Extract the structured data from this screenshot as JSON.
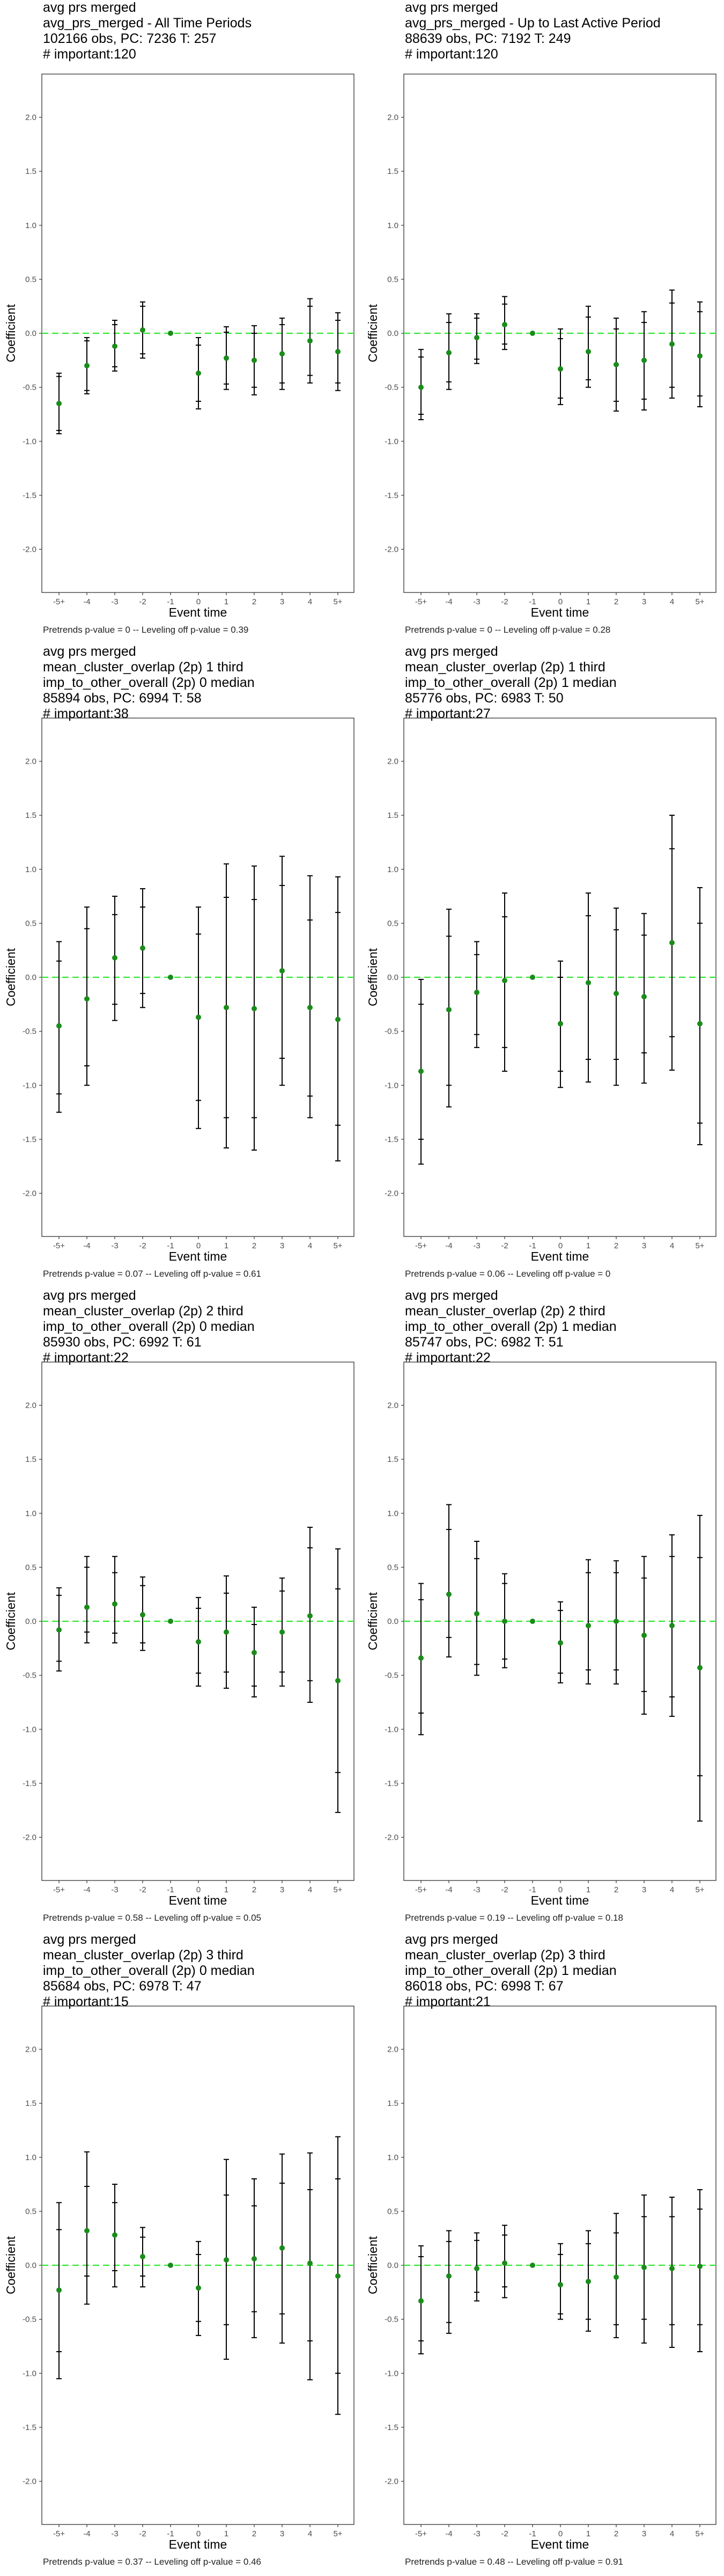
{
  "colors": {
    "point": "#1a8c1a",
    "zero_line": "#33e633",
    "interval": "#000000",
    "frame": "#333333",
    "tick_text": "#4d4d4d"
  },
  "chart_data": [
    {
      "type": "scatter",
      "title": [
        "avg prs merged",
        "avg_prs_merged - All Time Periods",
        "102166 obs, PC: 7236 T: 257",
        "# important:120"
      ],
      "footer": "Pretrends p-value = 0 -- Leveling off p-value = 0.39",
      "categories": [
        "-5+",
        "-4",
        "-3",
        "-2",
        "-1",
        "0",
        "1",
        "2",
        "3",
        "4",
        "5+"
      ],
      "xlabel": "Event time",
      "ylabel": "Coefficient",
      "ylim": [
        -2.4,
        2.4
      ],
      "yticks": [
        "-2.0",
        "-1.5",
        "-1.0",
        "-0.5",
        "0.0",
        "0.5",
        "1.0",
        "1.5",
        "2.0"
      ],
      "series": [
        {
          "values": [
            -0.65,
            -0.3,
            -0.12,
            0.03,
            0.0,
            -0.37,
            -0.23,
            -0.25,
            -0.19,
            -0.07,
            -0.17
          ]
        }
      ],
      "ci95": [
        [
          -0.93,
          -0.37
        ],
        [
          -0.56,
          -0.04
        ],
        [
          -0.35,
          0.12
        ],
        [
          -0.23,
          0.29
        ],
        [
          0.0,
          0.0
        ],
        [
          -0.7,
          -0.04
        ],
        [
          -0.52,
          0.06
        ],
        [
          -0.57,
          0.07
        ],
        [
          -0.52,
          0.14
        ],
        [
          -0.46,
          0.32
        ],
        [
          -0.53,
          0.19
        ]
      ],
      "ci90": [
        [
          -0.9,
          -0.4
        ],
        [
          -0.53,
          -0.07
        ],
        [
          -0.31,
          0.08
        ],
        [
          -0.19,
          0.25
        ],
        [
          0.0,
          0.0
        ],
        [
          -0.63,
          -0.11
        ],
        [
          -0.47,
          0.01
        ],
        [
          -0.5,
          0.0
        ],
        [
          -0.46,
          0.08
        ],
        [
          -0.39,
          0.25
        ],
        [
          -0.46,
          0.12
        ]
      ]
    },
    {
      "type": "scatter",
      "title": [
        "avg prs merged",
        "avg_prs_merged - Up to Last Active Period",
        "88639 obs, PC: 7192 T: 249",
        "# important:120"
      ],
      "footer": "Pretrends p-value = 0 -- Leveling off p-value = 0.28",
      "categories": [
        "-5+",
        "-4",
        "-3",
        "-2",
        "-1",
        "0",
        "1",
        "2",
        "3",
        "4",
        "5+"
      ],
      "xlabel": "Event time",
      "ylabel": "Coefficient",
      "ylim": [
        -2.4,
        2.4
      ],
      "yticks": [
        "-2.0",
        "-1.5",
        "-1.0",
        "-0.5",
        "0.0",
        "0.5",
        "1.0",
        "1.5",
        "2.0"
      ],
      "series": [
        {
          "values": [
            -0.5,
            -0.18,
            -0.04,
            0.08,
            0.0,
            -0.33,
            -0.17,
            -0.29,
            -0.25,
            -0.1,
            -0.21
          ]
        }
      ],
      "ci95": [
        [
          -0.8,
          -0.15
        ],
        [
          -0.52,
          0.18
        ],
        [
          -0.28,
          0.18
        ],
        [
          -0.15,
          0.34
        ],
        [
          0.0,
          0.0
        ],
        [
          -0.66,
          0.04
        ],
        [
          -0.5,
          0.25
        ],
        [
          -0.72,
          0.14
        ],
        [
          -0.71,
          0.2
        ],
        [
          -0.6,
          0.4
        ],
        [
          -0.68,
          0.29
        ]
      ],
      "ci90": [
        [
          -0.75,
          -0.22
        ],
        [
          -0.45,
          0.1
        ],
        [
          -0.24,
          0.14
        ],
        [
          -0.1,
          0.27
        ],
        [
          0.0,
          0.0
        ],
        [
          -0.6,
          -0.05
        ],
        [
          -0.43,
          0.15
        ],
        [
          -0.63,
          0.04
        ],
        [
          -0.61,
          0.1
        ],
        [
          -0.5,
          0.28
        ],
        [
          -0.58,
          0.2
        ]
      ]
    },
    {
      "type": "scatter",
      "title": [
        "avg prs merged",
        "mean_cluster_overlap (2p) 1 third",
        "imp_to_other_overall (2p) 0 median",
        "85894 obs, PC: 6994 T: 58",
        "# important:38"
      ],
      "footer": "Pretrends p-value = 0.07 -- Leveling off p-value = 0.61",
      "categories": [
        "-5+",
        "-4",
        "-3",
        "-2",
        "-1",
        "0",
        "1",
        "2",
        "3",
        "4",
        "5+"
      ],
      "xlabel": "Event time",
      "ylabel": "Coefficient",
      "ylim": [
        -2.4,
        2.4
      ],
      "yticks": [
        "-2.0",
        "-1.5",
        "-1.0",
        "-0.5",
        "0.0",
        "0.5",
        "1.0",
        "1.5",
        "2.0"
      ],
      "series": [
        {
          "values": [
            -0.45,
            -0.2,
            0.18,
            0.27,
            0.0,
            -0.37,
            -0.28,
            -0.29,
            0.06,
            -0.28,
            -0.39
          ]
        }
      ],
      "ci95": [
        [
          -1.25,
          0.33
        ],
        [
          -1.0,
          0.65
        ],
        [
          -0.4,
          0.75
        ],
        [
          -0.28,
          0.82
        ],
        [
          0.0,
          0.0
        ],
        [
          -1.4,
          0.65
        ],
        [
          -1.58,
          1.05
        ],
        [
          -1.6,
          1.03
        ],
        [
          -1.0,
          1.12
        ],
        [
          -1.3,
          0.94
        ],
        [
          -1.7,
          0.93
        ]
      ],
      "ci90": [
        [
          -1.08,
          0.15
        ],
        [
          -0.82,
          0.45
        ],
        [
          -0.25,
          0.58
        ],
        [
          -0.15,
          0.65
        ],
        [
          0.0,
          0.0
        ],
        [
          -1.14,
          0.4
        ],
        [
          -1.3,
          0.74
        ],
        [
          -1.3,
          0.72
        ],
        [
          -0.75,
          0.85
        ],
        [
          -1.1,
          0.53
        ],
        [
          -1.37,
          0.6
        ]
      ]
    },
    {
      "type": "scatter",
      "title": [
        "avg prs merged",
        "mean_cluster_overlap (2p) 1 third",
        "imp_to_other_overall (2p) 1 median",
        "85776 obs, PC: 6983 T: 50",
        "# important:27"
      ],
      "footer": "Pretrends p-value = 0.06 -- Leveling off p-value = 0",
      "categories": [
        "-5+",
        "-4",
        "-3",
        "-2",
        "-1",
        "0",
        "1",
        "2",
        "3",
        "4",
        "5+"
      ],
      "xlabel": "Event time",
      "ylabel": "Coefficient",
      "ylim": [
        -2.4,
        2.4
      ],
      "yticks": [
        "-2.0",
        "-1.5",
        "-1.0",
        "-0.5",
        "0.0",
        "0.5",
        "1.0",
        "1.5",
        "2.0"
      ],
      "series": [
        {
          "values": [
            -0.87,
            -0.3,
            -0.14,
            -0.03,
            0.0,
            -0.43,
            -0.05,
            -0.15,
            -0.18,
            0.32,
            -0.43
          ]
        }
      ],
      "ci95": [
        [
          -1.73,
          -0.02
        ],
        [
          -1.2,
          0.63
        ],
        [
          -0.65,
          0.33
        ],
        [
          -0.87,
          0.78
        ],
        [
          0.0,
          0.0
        ],
        [
          -1.02,
          0.15
        ],
        [
          -0.97,
          0.78
        ],
        [
          -1.0,
          0.64
        ],
        [
          -0.98,
          0.59
        ],
        [
          -0.86,
          1.5
        ],
        [
          -1.55,
          0.83
        ]
      ],
      "ci90": [
        [
          -1.5,
          -0.25
        ],
        [
          -1.0,
          0.38
        ],
        [
          -0.53,
          0.21
        ],
        [
          -0.65,
          0.56
        ],
        [
          0.0,
          0.0
        ],
        [
          -0.87,
          0.0
        ],
        [
          -0.76,
          0.57
        ],
        [
          -0.76,
          0.44
        ],
        [
          -0.7,
          0.39
        ],
        [
          -0.55,
          1.19
        ],
        [
          -1.35,
          0.5
        ]
      ]
    },
    {
      "type": "scatter",
      "title": [
        "avg prs merged",
        "mean_cluster_overlap (2p) 2 third",
        "imp_to_other_overall (2p) 0 median",
        "85930 obs, PC: 6992 T: 61",
        "# important:22"
      ],
      "footer": "Pretrends p-value = 0.58 -- Leveling off p-value = 0.05",
      "categories": [
        "-5+",
        "-4",
        "-3",
        "-2",
        "-1",
        "0",
        "1",
        "2",
        "3",
        "4",
        "5+"
      ],
      "xlabel": "Event time",
      "ylabel": "Coefficient",
      "ylim": [
        -2.4,
        2.4
      ],
      "yticks": [
        "-2.0",
        "-1.5",
        "-1.0",
        "-0.5",
        "0.0",
        "0.5",
        "1.0",
        "1.5",
        "2.0"
      ],
      "series": [
        {
          "values": [
            -0.08,
            0.13,
            0.16,
            0.06,
            0.0,
            -0.19,
            -0.1,
            -0.29,
            -0.1,
            0.05,
            -0.55
          ]
        }
      ],
      "ci95": [
        [
          -0.46,
          0.31
        ],
        [
          -0.2,
          0.6
        ],
        [
          -0.2,
          0.6
        ],
        [
          -0.27,
          0.41
        ],
        [
          0.0,
          0.0
        ],
        [
          -0.6,
          0.22
        ],
        [
          -0.62,
          0.42
        ],
        [
          -0.7,
          0.13
        ],
        [
          -0.6,
          0.4
        ],
        [
          -0.75,
          0.87
        ],
        [
          -1.77,
          0.67
        ]
      ],
      "ci90": [
        [
          -0.37,
          0.24
        ],
        [
          -0.1,
          0.5
        ],
        [
          -0.11,
          0.45
        ],
        [
          -0.2,
          0.33
        ],
        [
          0.0,
          0.0
        ],
        [
          -0.48,
          0.12
        ],
        [
          -0.47,
          0.26
        ],
        [
          -0.6,
          -0.03
        ],
        [
          -0.47,
          0.28
        ],
        [
          -0.55,
          0.68
        ],
        [
          -1.4,
          0.3
        ]
      ]
    },
    {
      "type": "scatter",
      "title": [
        "avg prs merged",
        "mean_cluster_overlap (2p) 2 third",
        "imp_to_other_overall (2p) 1 median",
        "85747 obs, PC: 6982 T: 51",
        "# important:22"
      ],
      "footer": "Pretrends p-value = 0.19 -- Leveling off p-value = 0.18",
      "categories": [
        "-5+",
        "-4",
        "-3",
        "-2",
        "-1",
        "0",
        "1",
        "2",
        "3",
        "4",
        "5+"
      ],
      "xlabel": "Event time",
      "ylabel": "Coefficient",
      "ylim": [
        -2.4,
        2.4
      ],
      "yticks": [
        "-2.0",
        "-1.5",
        "-1.0",
        "-0.5",
        "0.0",
        "0.5",
        "1.0",
        "1.5",
        "2.0"
      ],
      "series": [
        {
          "values": [
            -0.34,
            0.25,
            0.07,
            0.0,
            0.0,
            -0.2,
            -0.04,
            0.0,
            -0.13,
            -0.04,
            -0.43
          ]
        }
      ],
      "ci95": [
        [
          -1.05,
          0.35
        ],
        [
          -0.33,
          1.08
        ],
        [
          -0.5,
          0.74
        ],
        [
          -0.43,
          0.44
        ],
        [
          0.0,
          0.0
        ],
        [
          -0.57,
          0.18
        ],
        [
          -0.58,
          0.57
        ],
        [
          -0.58,
          0.56
        ],
        [
          -0.86,
          0.6
        ],
        [
          -0.88,
          0.8
        ],
        [
          -1.85,
          0.98
        ]
      ],
      "ci90": [
        [
          -0.85,
          0.2
        ],
        [
          -0.15,
          0.85
        ],
        [
          -0.4,
          0.58
        ],
        [
          -0.35,
          0.35
        ],
        [
          0.0,
          0.0
        ],
        [
          -0.48,
          0.1
        ],
        [
          -0.45,
          0.45
        ],
        [
          -0.45,
          0.45
        ],
        [
          -0.65,
          0.4
        ],
        [
          -0.7,
          0.6
        ],
        [
          -1.43,
          0.59
        ]
      ]
    },
    {
      "type": "scatter",
      "title": [
        "avg prs merged",
        "mean_cluster_overlap (2p) 3 third",
        "imp_to_other_overall (2p) 0 median",
        "85684 obs, PC: 6978 T: 47",
        "# important:15"
      ],
      "footer": "Pretrends p-value = 0.37 -- Leveling off p-value = 0.46",
      "categories": [
        "-5+",
        "-4",
        "-3",
        "-2",
        "-1",
        "0",
        "1",
        "2",
        "3",
        "4",
        "5+"
      ],
      "xlabel": "Event time",
      "ylabel": "Coefficient",
      "ylim": [
        -2.4,
        2.4
      ],
      "yticks": [
        "-2.0",
        "-1.5",
        "-1.0",
        "-0.5",
        "0.0",
        "0.5",
        "1.0",
        "1.5",
        "2.0"
      ],
      "series": [
        {
          "values": [
            -0.23,
            0.32,
            0.28,
            0.08,
            0.0,
            -0.21,
            0.05,
            0.06,
            0.16,
            0.02,
            -0.1
          ]
        }
      ],
      "ci95": [
        [
          -1.05,
          0.58
        ],
        [
          -0.36,
          1.05
        ],
        [
          -0.2,
          0.75
        ],
        [
          -0.2,
          0.35
        ],
        [
          0.0,
          0.0
        ],
        [
          -0.65,
          0.22
        ],
        [
          -0.87,
          0.98
        ],
        [
          -0.67,
          0.8
        ],
        [
          -0.72,
          1.03
        ],
        [
          -1.06,
          1.04
        ],
        [
          -1.38,
          1.19
        ]
      ],
      "ci90": [
        [
          -0.8,
          0.33
        ],
        [
          -0.1,
          0.73
        ],
        [
          -0.05,
          0.58
        ],
        [
          -0.1,
          0.26
        ],
        [
          0.0,
          0.0
        ],
        [
          -0.52,
          0.1
        ],
        [
          -0.55,
          0.65
        ],
        [
          -0.43,
          0.55
        ],
        [
          -0.45,
          0.76
        ],
        [
          -0.7,
          0.7
        ],
        [
          -1.0,
          0.8
        ]
      ]
    },
    {
      "type": "scatter",
      "title": [
        "avg prs merged",
        "mean_cluster_overlap (2p) 3 third",
        "imp_to_other_overall (2p) 1 median",
        "86018 obs, PC: 6998 T: 67",
        "# important:21"
      ],
      "footer": "Pretrends p-value = 0.48 -- Leveling off p-value = 0.91",
      "categories": [
        "-5+",
        "-4",
        "-3",
        "-2",
        "-1",
        "0",
        "1",
        "2",
        "3",
        "4",
        "5+"
      ],
      "xlabel": "Event time",
      "ylabel": "Coefficient",
      "ylim": [
        -2.4,
        2.4
      ],
      "yticks": [
        "-2.0",
        "-1.5",
        "-1.0",
        "-0.5",
        "0.0",
        "0.5",
        "1.0",
        "1.5",
        "2.0"
      ],
      "series": [
        {
          "values": [
            -0.33,
            -0.1,
            -0.03,
            0.02,
            0.0,
            -0.18,
            -0.15,
            -0.11,
            -0.02,
            -0.03,
            -0.01
          ]
        }
      ],
      "ci95": [
        [
          -0.82,
          0.18
        ],
        [
          -0.63,
          0.32
        ],
        [
          -0.33,
          0.3
        ],
        [
          -0.3,
          0.37
        ],
        [
          0.0,
          0.0
        ],
        [
          -0.5,
          0.2
        ],
        [
          -0.61,
          0.32
        ],
        [
          -0.67,
          0.48
        ],
        [
          -0.72,
          0.65
        ],
        [
          -0.76,
          0.63
        ],
        [
          -0.8,
          0.7
        ]
      ],
      "ci90": [
        [
          -0.7,
          0.08
        ],
        [
          -0.53,
          0.22
        ],
        [
          -0.25,
          0.23
        ],
        [
          -0.2,
          0.28
        ],
        [
          0.0,
          0.0
        ],
        [
          -0.45,
          0.1
        ],
        [
          -0.5,
          0.2
        ],
        [
          -0.55,
          0.3
        ],
        [
          -0.5,
          0.45
        ],
        [
          -0.55,
          0.45
        ],
        [
          -0.55,
          0.52
        ]
      ]
    }
  ]
}
